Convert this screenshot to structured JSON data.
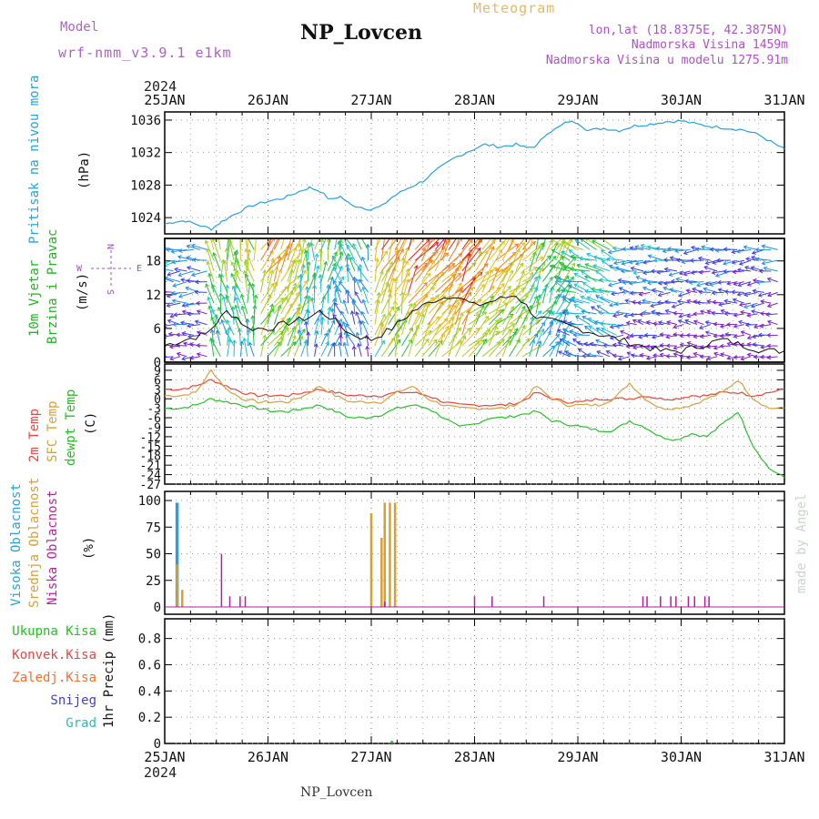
{
  "header": {
    "model_label": "Model",
    "model_version": "wrf-nmm_v3.9.1  e1km",
    "station": "NP_Lovcen",
    "subtitle": "Meteogram",
    "coords": "lon,lat (18.8375E, 42.3875N)",
    "altitude": "Nadmorska Visina 1459m",
    "model_altitude": "Nadmorska Visina u modelu 1275.91m",
    "year_top": "2024",
    "year_bottom": "2024",
    "footer_station": "NP_Lovcen",
    "watermark": "made by Angel"
  },
  "colors": {
    "pressure": "#2aa2d8",
    "temp2m": "#e8473f",
    "sfc": "#d8a03a",
    "dewpt": "#29c12b",
    "high_cloud": "#2a9fd8",
    "mid_cloud": "#d8a030",
    "low_cloud": "#b020a0",
    "wind_label": "#22b522",
    "axis_purple": "#a050c8",
    "grad": "#29c0b0",
    "snow": "#4040d0",
    "conv": "#e8473f",
    "frz": "#f07030",
    "total": "#22c022"
  },
  "x_axis": {
    "ticks": [
      "25JAN",
      "26JAN",
      "27JAN",
      "28JAN",
      "29JAN",
      "30JAN",
      "31JAN"
    ],
    "start_day": 25,
    "end_day": 31
  },
  "panels": {
    "pressure": {
      "ylabel_main": "Pritisak na nivou mora",
      "ylabel_unit": "(hPa)",
      "ticks": [
        "1024",
        "1028",
        "1032",
        "1036"
      ]
    },
    "wind": {
      "ylabel_main": "10m Vjetar",
      "ylabel_sub": "Brzina i Pravac",
      "ylabel_unit": "(m/s)",
      "ticks": [
        "0",
        "6",
        "12",
        "18"
      ],
      "compass": {
        "n": "N",
        "s": "S",
        "w": "W",
        "e": "E"
      }
    },
    "temp": {
      "ylabel_1": "2m Temp",
      "ylabel_2": "SFC Temp",
      "ylabel_3": "dewpt Temp",
      "ylabel_unit": "(C)",
      "ticks": [
        "9",
        "6",
        "3",
        "0",
        "-3",
        "-6",
        "-9",
        "-12",
        "-15",
        "-18",
        "-21",
        "-24",
        "-27"
      ]
    },
    "cloud": {
      "ylabel_1": "Visoka Oblacnost",
      "ylabel_2": "Srednja Oblacnost",
      "ylabel_3": "Niska Oblacnost",
      "ylabel_unit": "(%)",
      "ticks": [
        "0",
        "25",
        "50",
        "75",
        "100"
      ]
    },
    "precip": {
      "legend": [
        "Ukupna Kisa",
        "Konvek.Kisa",
        "Zaledj.Kisa",
        "Snijeg",
        "Grad"
      ],
      "ylabel": "1hr Precip (mm)",
      "ticks": [
        "0",
        "0.2",
        "0.4",
        "0.6",
        "0.8"
      ]
    }
  },
  "chart_data": [
    {
      "type": "line",
      "title": "Pritisak na nivou mora",
      "ylabel": "(hPa)",
      "x_days": [
        25.0,
        25.1,
        25.2,
        25.35,
        25.45,
        25.55,
        25.7,
        25.85,
        26.0,
        26.15,
        26.3,
        26.4,
        26.5,
        26.6,
        26.7,
        26.8,
        26.9,
        27.0,
        27.1,
        27.2,
        27.35,
        27.5,
        27.65,
        27.8,
        27.95,
        28.1,
        28.25,
        28.4,
        28.5,
        28.6,
        28.7,
        28.8,
        28.9,
        29.0,
        29.1,
        29.25,
        29.4,
        29.55,
        29.7,
        29.85,
        30.0,
        30.15,
        30.3,
        30.45,
        30.6,
        30.75,
        30.9,
        31.0
      ],
      "values": [
        1023.2,
        1023.5,
        1023.6,
        1023.0,
        1022.6,
        1023.5,
        1024.6,
        1025.5,
        1026.0,
        1026.4,
        1027.2,
        1027.7,
        1027.3,
        1026.2,
        1026.6,
        1025.6,
        1025.3,
        1025.0,
        1025.4,
        1026.5,
        1027.6,
        1028.5,
        1030.0,
        1031.3,
        1032.2,
        1033.0,
        1032.7,
        1033.0,
        1032.6,
        1032.8,
        1034.4,
        1035.0,
        1035.8,
        1035.7,
        1034.7,
        1035.0,
        1034.7,
        1035.3,
        1035.5,
        1035.8,
        1035.9,
        1035.5,
        1035.2,
        1035.0,
        1034.8,
        1034.2,
        1033.1,
        1032.4
      ],
      "ylim": [
        1022,
        1037
      ]
    },
    {
      "type": "line",
      "title": "10m Vjetar Brzina i Pravac",
      "ylabel": "(m/s)",
      "x_days": [
        25.0,
        25.2,
        25.4,
        25.5,
        25.6,
        25.7,
        25.8,
        26.0,
        26.2,
        26.4,
        26.5,
        26.6,
        26.8,
        27.0,
        27.2,
        27.4,
        27.6,
        27.8,
        28.0,
        28.2,
        28.4,
        28.5,
        28.6,
        28.8,
        29.0,
        29.2,
        29.4,
        29.6,
        29.8,
        30.0,
        30.2,
        30.4,
        30.6,
        30.8,
        31.0
      ],
      "values": [
        3,
        4,
        5,
        7,
        9,
        8,
        6,
        6,
        7,
        8,
        9,
        8,
        5,
        4,
        6,
        9,
        11,
        12,
        10,
        11,
        12,
        10,
        8,
        7,
        6,
        5,
        4,
        3,
        2,
        2,
        3,
        4,
        3,
        2,
        2
      ],
      "ylim": [
        0,
        22
      ]
    },
    {
      "type": "line",
      "title": "Temperature",
      "ylabel": "(C)",
      "x_days": [
        25.0,
        25.15,
        25.3,
        25.45,
        25.6,
        25.75,
        25.9,
        26.05,
        26.2,
        26.35,
        26.5,
        26.65,
        26.8,
        26.95,
        27.1,
        27.25,
        27.4,
        27.55,
        27.7,
        27.85,
        28.0,
        28.15,
        28.3,
        28.45,
        28.6,
        28.75,
        28.9,
        29.05,
        29.2,
        29.35,
        29.5,
        29.65,
        29.8,
        29.95,
        30.1,
        30.25,
        30.4,
        30.55,
        30.7,
        30.85,
        31.0
      ],
      "series": [
        {
          "name": "2m Temp",
          "values": [
            3,
            3,
            4,
            6,
            4,
            2,
            1,
            1,
            1,
            2,
            3,
            2,
            1,
            1,
            1,
            2,
            2,
            1,
            -1,
            -2,
            -2,
            -2,
            -2,
            -1,
            2,
            0,
            -1,
            -1,
            0,
            0,
            0,
            1,
            0,
            0,
            1,
            1,
            2,
            2,
            1,
            2,
            3
          ]
        },
        {
          "name": "SFC Temp",
          "values": [
            1,
            1,
            2,
            9,
            3,
            0,
            -1,
            -1,
            -1,
            1,
            4,
            1,
            -1,
            -1,
            -1,
            2,
            4,
            0,
            -2,
            -3,
            -3,
            -3,
            -3,
            -1,
            4,
            0,
            -2,
            -2,
            -2,
            0,
            5,
            0,
            -3,
            -3,
            -2,
            0,
            2,
            6,
            0,
            -3,
            -3
          ]
        },
        {
          "name": "dewpt Temp",
          "values": [
            -3,
            -3,
            -2,
            0,
            -1,
            -2,
            -3,
            -4,
            -4,
            -3,
            -2,
            -4,
            -6,
            -6,
            -5,
            -3,
            -2,
            -3,
            -6,
            -9,
            -8,
            -6,
            -6,
            -5,
            -4,
            -7,
            -8,
            -9,
            -10,
            -10,
            -7,
            -9,
            -12,
            -13,
            -11,
            -12,
            -8,
            -4,
            -15,
            -22,
            -25
          ]
        }
      ],
      "ylim": [
        -27,
        11
      ]
    },
    {
      "type": "bar",
      "title": "Oblacnost",
      "ylabel": "(%)",
      "series": [
        {
          "name": "Visoka Oblacnost",
          "points": [
            [
              25.12,
              98
            ]
          ]
        },
        {
          "name": "Srednja Oblacnost",
          "points": [
            [
              25.12,
              40
            ],
            [
              25.17,
              16
            ],
            [
              27.0,
              88
            ],
            [
              27.1,
              65
            ],
            [
              27.13,
              98
            ],
            [
              27.18,
              98
            ],
            [
              27.23,
              98
            ]
          ]
        },
        {
          "name": "Niska Oblacnost",
          "points": [
            [
              25.55,
              50
            ],
            [
              25.63,
              10
            ],
            [
              25.73,
              10
            ],
            [
              25.78,
              10
            ],
            [
              27.13,
              5
            ],
            [
              28.0,
              10
            ],
            [
              28.17,
              10
            ],
            [
              28.67,
              10
            ],
            [
              29.63,
              10
            ],
            [
              29.67,
              10
            ],
            [
              29.8,
              10
            ],
            [
              29.9,
              10
            ],
            [
              29.95,
              10
            ],
            [
              30.07,
              10
            ],
            [
              30.13,
              10
            ],
            [
              30.23,
              10
            ],
            [
              30.27,
              10
            ]
          ]
        }
      ],
      "ylim": [
        0,
        100
      ]
    },
    {
      "type": "bar",
      "title": "1hr Precip",
      "ylabel": "1hr Precip (mm)",
      "series": [
        {
          "name": "Ukupna Kisa",
          "points": [
            [
              27.2,
              0.005
            ]
          ]
        },
        {
          "name": "Konvek.Kisa",
          "points": []
        },
        {
          "name": "Zaledj.Kisa",
          "points": []
        },
        {
          "name": "Snijeg",
          "points": []
        },
        {
          "name": "Grad",
          "points": []
        }
      ],
      "ylim": [
        0,
        0.95
      ]
    }
  ]
}
